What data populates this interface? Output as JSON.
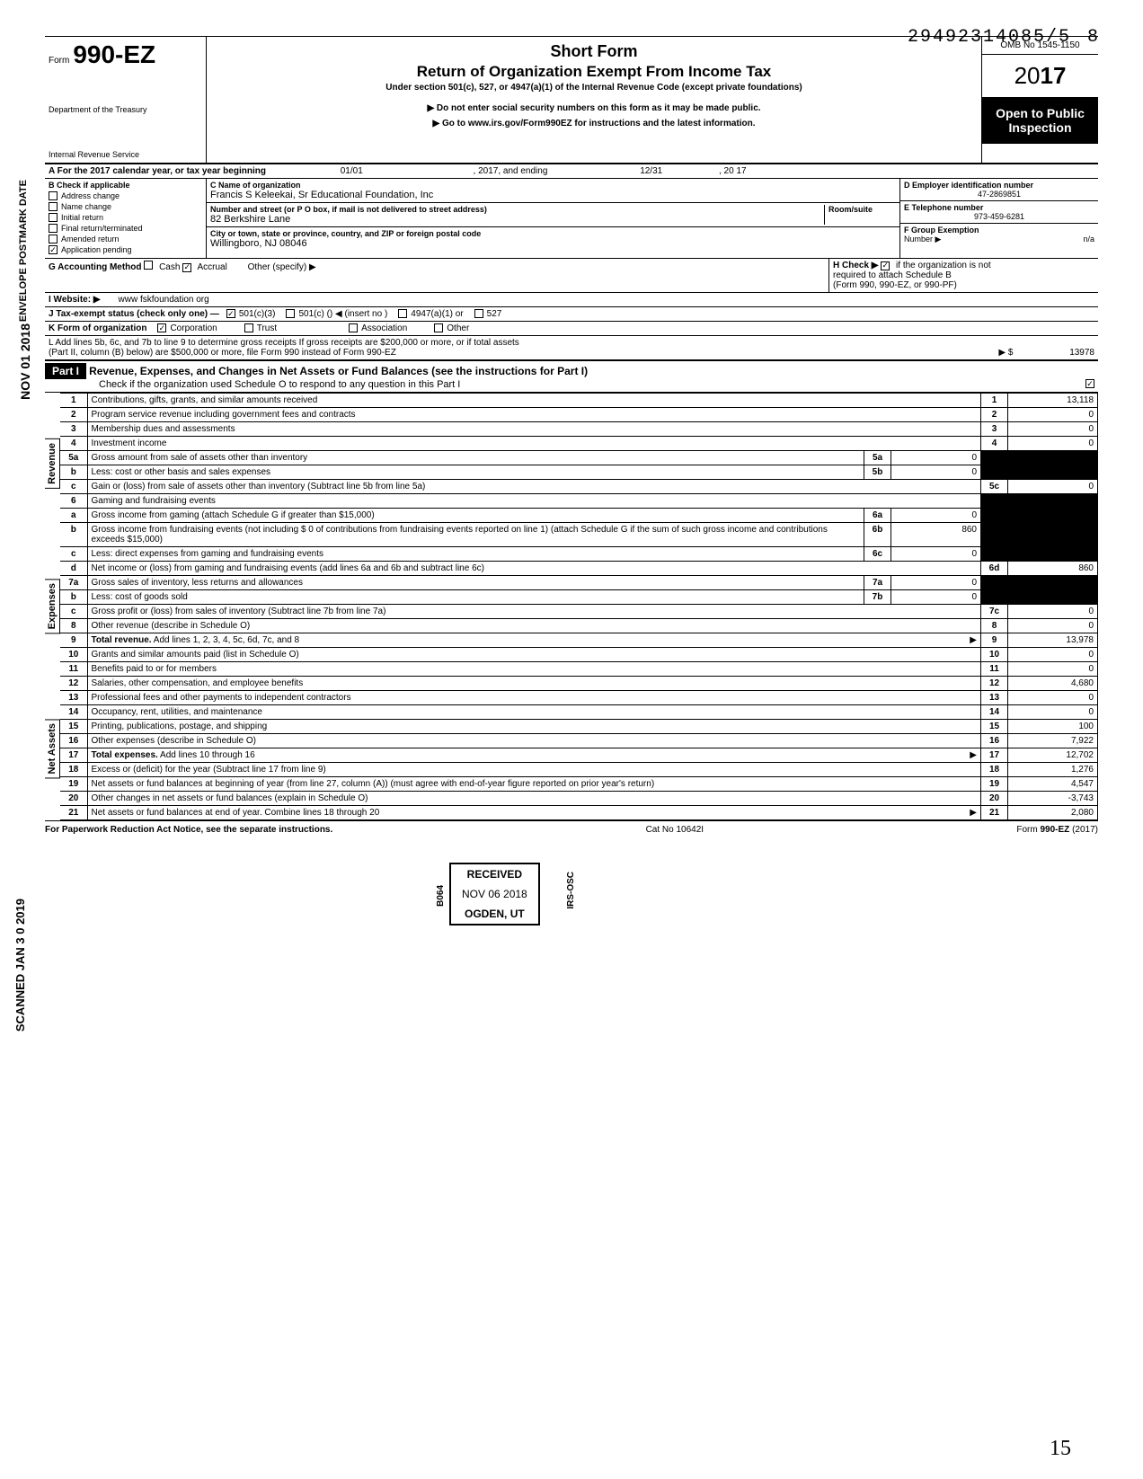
{
  "dln": "29492314085/5",
  "dln_extra": "8",
  "form": {
    "prefix": "Form",
    "number": "990-EZ",
    "dept1": "Department of the Treasury",
    "dept2": "Internal Revenue Service",
    "title_short": "Short Form",
    "title_main": "Return of Organization Exempt From Income Tax",
    "title_desc": "Under section 501(c), 527, or 4947(a)(1) of the Internal Revenue Code (except private foundations)",
    "ssn_note": "▶ Do not enter social security numbers on this form as it may be made public.",
    "link_note": "▶ Go to www.irs.gov/Form990EZ for instructions and the latest information.",
    "omb": "OMB No 1545-1150",
    "year": "2017",
    "open_public1": "Open to Public",
    "open_public2": "Inspection"
  },
  "row_a": {
    "label": "A For the 2017 calendar year, or tax year beginning",
    "begin": "01/01",
    "mid": ", 2017, and ending",
    "end": "12/31",
    "year_end": ", 20   17"
  },
  "section_b": {
    "header": "B  Check if applicable",
    "items": [
      "Address change",
      "Name change",
      "Initial return",
      "Final return/terminated",
      "Amended return",
      "Application pending"
    ],
    "checked_idx": 5
  },
  "section_c": {
    "name_label": "C Name of organization",
    "name": "Francis S  Keleekai, Sr Educational Foundation, Inc",
    "addr_label": "Number and street (or P O  box, if mail is not delivered to street address)",
    "room_label": "Room/suite",
    "addr": "82 Berkshire Lane",
    "city_label": "City or town, state or province, country, and ZIP or foreign postal code",
    "city": "Willingboro, NJ 08046"
  },
  "section_d": {
    "ein_label": "D Employer identification number",
    "ein": "47-2869851",
    "phone_label": "E Telephone number",
    "phone": "973-459-6281",
    "group_label": "F Group Exemption",
    "group_label2": "Number ▶",
    "group": "n/a"
  },
  "row_g": {
    "label": "G Accounting Method",
    "cash": "Cash",
    "accrual": "Accrual",
    "other": "Other (specify) ▶",
    "h_label": "H Check ▶",
    "h_text": "if the organization is not",
    "h_text2": "required to attach Schedule B",
    "h_text3": "(Form 990, 990-EZ, or 990-PF)"
  },
  "row_i": {
    "label": "I  Website: ▶",
    "value": "www fskfoundation org"
  },
  "row_j": {
    "label": "J Tax-exempt status (check only one) —",
    "opt1": "501(c)(3)",
    "opt2": "501(c) (",
    "opt2b": ")  ◀ (insert no )",
    "opt3": "4947(a)(1) or",
    "opt4": "527"
  },
  "row_k": {
    "label": "K Form of organization",
    "opt1": "Corporation",
    "opt2": "Trust",
    "opt3": "Association",
    "opt4": "Other"
  },
  "row_l": {
    "text1": "L Add lines 5b, 6c, and 7b to line 9 to determine gross receipts  If gross receipts are $200,000 or more, or if total assets",
    "text2": "(Part II, column (B) below) are $500,000 or more, file Form 990 instead of Form 990-EZ",
    "arrow": "▶  $",
    "value": "13978"
  },
  "part1": {
    "label": "Part I",
    "title": "Revenue, Expenses, and Changes in Net Assets or Fund Balances (see the instructions for Part I)",
    "check_text": "Check if the organization used Schedule O to respond to any question in this Part I"
  },
  "side_labels": {
    "revenue": "Revenue",
    "expenses": "Expenses",
    "net_assets": "Net Assets"
  },
  "lines": [
    {
      "n": "1",
      "desc": "Contributions, gifts, grants, and similar amounts received",
      "tn": "1",
      "tv": "13,118"
    },
    {
      "n": "2",
      "desc": "Program service revenue including government fees and contracts",
      "tn": "2",
      "tv": "0"
    },
    {
      "n": "3",
      "desc": "Membership dues and assessments",
      "tn": "3",
      "tv": "0"
    },
    {
      "n": "4",
      "desc": "Investment income",
      "tn": "4",
      "tv": "0"
    },
    {
      "n": "5a",
      "desc": "Gross amount from sale of assets other than inventory",
      "sn": "5a",
      "sv": "0",
      "shaded": true
    },
    {
      "n": "b",
      "desc": "Less: cost or other basis and sales expenses",
      "sn": "5b",
      "sv": "0",
      "shaded": true
    },
    {
      "n": "c",
      "desc": "Gain or (loss) from sale of assets other than inventory (Subtract line 5b from line 5a)",
      "tn": "5c",
      "tv": "0"
    },
    {
      "n": "6",
      "desc": "Gaming and fundraising events",
      "shaded": true,
      "noval": true
    },
    {
      "n": "a",
      "desc": "Gross income from gaming (attach Schedule G if greater than $15,000)",
      "sn": "6a",
      "sv": "0",
      "shaded": true
    },
    {
      "n": "b",
      "desc": "Gross income from fundraising events (not including  $                          0 of contributions from fundraising events reported on line 1) (attach Schedule G if the sum of such gross income and contributions exceeds $15,000)",
      "sn": "6b",
      "sv": "860",
      "shaded": true
    },
    {
      "n": "c",
      "desc": "Less: direct expenses from gaming and fundraising events",
      "sn": "6c",
      "sv": "0",
      "shaded": true
    },
    {
      "n": "d",
      "desc": "Net income or (loss) from gaming and fundraising events (add lines 6a and 6b and subtract line 6c)",
      "tn": "6d",
      "tv": "860"
    },
    {
      "n": "7a",
      "desc": "Gross sales of inventory, less returns and allowances",
      "sn": "7a",
      "sv": "0",
      "shaded": true
    },
    {
      "n": "b",
      "desc": "Less: cost of goods sold",
      "sn": "7b",
      "sv": "0",
      "shaded": true
    },
    {
      "n": "c",
      "desc": "Gross profit or (loss) from sales of inventory (Subtract line 7b from line 7a)",
      "tn": "7c",
      "tv": "0"
    },
    {
      "n": "8",
      "desc": "Other revenue (describe in Schedule O)",
      "tn": "8",
      "tv": "0"
    },
    {
      "n": "9",
      "desc": "Total revenue. Add lines 1, 2, 3, 4, 5c, 6d, 7c, and 8",
      "tn": "9",
      "tv": "13,978",
      "bold": true,
      "arrow": true
    },
    {
      "n": "10",
      "desc": "Grants and similar amounts paid (list in Schedule O)",
      "tn": "10",
      "tv": "0"
    },
    {
      "n": "11",
      "desc": "Benefits paid to or for members",
      "tn": "11",
      "tv": "0"
    },
    {
      "n": "12",
      "desc": "Salaries, other compensation, and employee benefits",
      "tn": "12",
      "tv": "4,680"
    },
    {
      "n": "13",
      "desc": "Professional fees and other payments to independent contractors",
      "tn": "13",
      "tv": "0"
    },
    {
      "n": "14",
      "desc": "Occupancy, rent, utilities, and maintenance",
      "tn": "14",
      "tv": "0"
    },
    {
      "n": "15",
      "desc": "Printing, publications, postage, and shipping",
      "tn": "15",
      "tv": "100"
    },
    {
      "n": "16",
      "desc": "Other expenses (describe in Schedule O)",
      "tn": "16",
      "tv": "7,922"
    },
    {
      "n": "17",
      "desc": "Total expenses. Add lines 10 through 16",
      "tn": "17",
      "tv": "12,702",
      "bold": true,
      "arrow": true
    },
    {
      "n": "18",
      "desc": "Excess or (deficit) for the year (Subtract line 17 from line 9)",
      "tn": "18",
      "tv": "1,276"
    },
    {
      "n": "19",
      "desc": "Net assets or fund balances at beginning of year (from line 27, column (A)) (must agree with end-of-year figure reported on prior year's return)",
      "tn": "19",
      "tv": "4,547",
      "shaded_top": true
    },
    {
      "n": "20",
      "desc": "Other changes in net assets or fund balances (explain in Schedule O)",
      "tn": "20",
      "tv": "-3,743"
    },
    {
      "n": "21",
      "desc": "Net assets or fund balances at end of year. Combine lines 18 through 20",
      "tn": "21",
      "tv": "2,080",
      "arrow": true
    }
  ],
  "footer": {
    "left": "For Paperwork Reduction Act Notice, see the separate instructions.",
    "mid": "Cat No 10642I",
    "right": "Form 990-EZ (2017)"
  },
  "stamps": {
    "received": "RECEIVED",
    "date": "NOV 06 2018",
    "ogden": "OGDEN, UT",
    "postmark1": "ENVELOPE",
    "postmark2": "POSTMARK",
    "postmark3": "DATE",
    "nov": "NOV 01 2018",
    "scanned": "SCANNED JAN 3 0 2019",
    "irs_osc": "IRS-OSC",
    "b064": "B064",
    "page": "15"
  }
}
